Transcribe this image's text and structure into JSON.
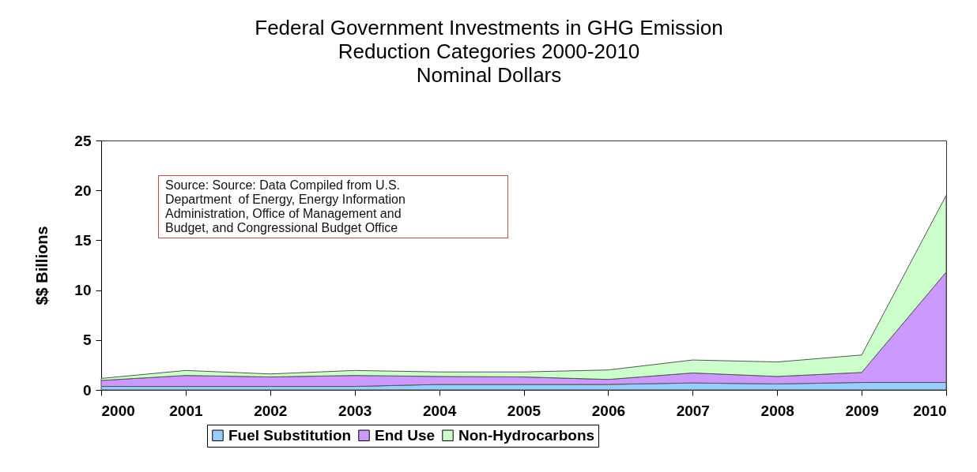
{
  "chart_data": {
    "type": "area",
    "title": "Federal Government Investments in GHG Emission\nReduction Categories 2000-2010\nNominal Dollars",
    "ylabel": "$$ Billions",
    "x": [
      2000,
      2001,
      2002,
      2003,
      2004,
      2005,
      2006,
      2007,
      2008,
      2009,
      2010
    ],
    "xlim": [
      2000,
      2010
    ],
    "xticks": [
      2000,
      2001,
      2002,
      2003,
      2004,
      2005,
      2006,
      2007,
      2008,
      2009,
      2010
    ],
    "ylim": [
      0,
      25
    ],
    "yticks": [
      0,
      5,
      10,
      15,
      20,
      25
    ],
    "stacked": true,
    "grid": false,
    "legend": "bottom",
    "annotations": [
      "Source: Source: Data Compiled from U.S. Department  of Energy, Energy Information Administration, Office of Management and Budget, and Congressional Budget Office"
    ],
    "series": [
      {
        "name": "Fuel Substitution",
        "color": "#99ccff",
        "values": [
          0.35,
          0.35,
          0.35,
          0.35,
          0.55,
          0.55,
          0.55,
          0.7,
          0.6,
          0.75,
          0.75
        ]
      },
      {
        "name": "End Use",
        "color": "#cc99ff",
        "values": [
          0.6,
          1.1,
          0.95,
          1.1,
          0.8,
          0.75,
          0.5,
          1.0,
          0.75,
          1.0,
          11.05
        ]
      },
      {
        "name": "Non-Hydrocarbons",
        "color": "#ccffcc",
        "values": [
          0.2,
          0.5,
          0.3,
          0.5,
          0.45,
          0.5,
          0.95,
          1.3,
          1.45,
          1.75,
          7.7
        ]
      }
    ]
  }
}
